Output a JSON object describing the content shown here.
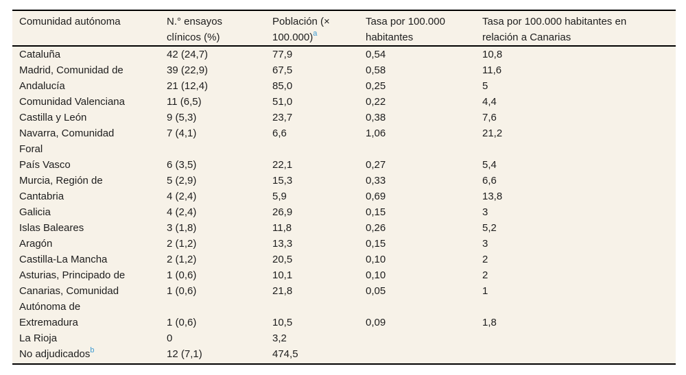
{
  "colors": {
    "table_background": "#f7f2e8",
    "rule": "#000000",
    "text": "#1d1d1d",
    "footnote_accent": "#3d9ad1"
  },
  "table": {
    "columns": [
      {
        "label": "Comunidad autónoma",
        "sup": ""
      },
      {
        "label": "N.° ensayos clínicos (%)",
        "sup": ""
      },
      {
        "label": "Población (× 100.000)",
        "sup": "a"
      },
      {
        "label": "Tasa por 100.000 habitantes",
        "sup": ""
      },
      {
        "label": "Tasa por 100.000 habitantes en relación a Canarias",
        "sup": ""
      }
    ],
    "rows": [
      {
        "name": "Cataluña",
        "sup": "",
        "trials": "42 (24,7)",
        "population": "77,9",
        "rate": "0,54",
        "rate_vs_canarias": "10,8"
      },
      {
        "name": "Madrid, Comunidad de",
        "sup": "",
        "trials": "39 (22,9)",
        "population": "67,5",
        "rate": "0,58",
        "rate_vs_canarias": "11,6"
      },
      {
        "name": "Andalucía",
        "sup": "",
        "trials": "21 (12,4)",
        "population": "85,0",
        "rate": "0,25",
        "rate_vs_canarias": "5"
      },
      {
        "name": "Comunidad Valenciana",
        "sup": "",
        "trials": "11 (6,5)",
        "population": "51,0",
        "rate": "0,22",
        "rate_vs_canarias": "4,4"
      },
      {
        "name": "Castilla y León",
        "sup": "",
        "trials": "9 (5,3)",
        "population": "23,7",
        "rate": "0,38",
        "rate_vs_canarias": "7,6"
      },
      {
        "name": "Navarra, Comunidad Foral",
        "sup": "",
        "trials": "7 (4,1)",
        "population": "6,6",
        "rate": "1,06",
        "rate_vs_canarias": "21,2"
      },
      {
        "name": "País Vasco",
        "sup": "",
        "trials": "6 (3,5)",
        "population": "22,1",
        "rate": "0,27",
        "rate_vs_canarias": "5,4"
      },
      {
        "name": "Murcia, Región de",
        "sup": "",
        "trials": "5 (2,9)",
        "population": "15,3",
        "rate": "0,33",
        "rate_vs_canarias": "6,6"
      },
      {
        "name": "Cantabria",
        "sup": "",
        "trials": "4 (2,4)",
        "population": "5,9",
        "rate": "0,69",
        "rate_vs_canarias": "13,8"
      },
      {
        "name": "Galicia",
        "sup": "",
        "trials": "4 (2,4)",
        "population": "26,9",
        "rate": "0,15",
        "rate_vs_canarias": "3"
      },
      {
        "name": "Islas Baleares",
        "sup": "",
        "trials": "3 (1,8)",
        "population": "11,8",
        "rate": "0,26",
        "rate_vs_canarias": "5,2"
      },
      {
        "name": "Aragón",
        "sup": "",
        "trials": "2 (1,2)",
        "population": "13,3",
        "rate": "0,15",
        "rate_vs_canarias": "3"
      },
      {
        "name": "Castilla-La Mancha",
        "sup": "",
        "trials": "2 (1,2)",
        "population": "20,5",
        "rate": "0,10",
        "rate_vs_canarias": "2"
      },
      {
        "name": "Asturias, Principado de",
        "sup": "",
        "trials": "1 (0,6)",
        "population": "10,1",
        "rate": "0,10",
        "rate_vs_canarias": "2"
      },
      {
        "name": "Canarias, Comunidad Autónoma de",
        "sup": "",
        "trials": "1 (0,6)",
        "population": "21,8",
        "rate": "0,05",
        "rate_vs_canarias": "1"
      },
      {
        "name": "Extremadura",
        "sup": "",
        "trials": "1 (0,6)",
        "population": "10,5",
        "rate": "0,09",
        "rate_vs_canarias": "1,8"
      },
      {
        "name": "La Rioja",
        "sup": "",
        "trials": "0",
        "population": "3,2",
        "rate": "",
        "rate_vs_canarias": ""
      },
      {
        "name": "No adjudicados",
        "sup": "b",
        "trials": "12 (7,1)",
        "population": "474,5",
        "rate": "",
        "rate_vs_canarias": ""
      }
    ]
  }
}
